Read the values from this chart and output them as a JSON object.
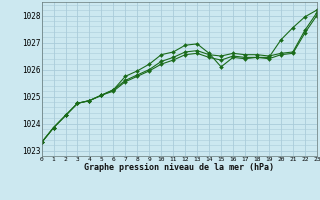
{
  "title": "Graphe pression niveau de la mer (hPa)",
  "bg_color": "#cce8f0",
  "grid_color": "#aaccda",
  "line_color": "#1a6b1a",
  "xlim": [
    0,
    23
  ],
  "ylim": [
    1022.8,
    1028.5
  ],
  "yticks": [
    1023,
    1024,
    1025,
    1026,
    1027,
    1028
  ],
  "xticks": [
    0,
    1,
    2,
    3,
    4,
    5,
    6,
    7,
    8,
    9,
    10,
    11,
    12,
    13,
    14,
    15,
    16,
    17,
    18,
    19,
    20,
    21,
    22,
    23
  ],
  "series": [
    [
      1023.3,
      1023.85,
      1024.3,
      1024.75,
      1024.85,
      1025.05,
      1025.25,
      1025.75,
      1025.95,
      1026.2,
      1026.55,
      1026.65,
      1026.9,
      1026.95,
      1026.6,
      1026.1,
      1026.45,
      1026.4,
      1026.45,
      1026.45,
      1027.1,
      1027.55,
      1027.95,
      1028.2
    ],
    [
      1023.3,
      1023.85,
      1024.3,
      1024.75,
      1024.85,
      1025.05,
      1025.25,
      1025.6,
      1025.8,
      1026.0,
      1026.3,
      1026.45,
      1026.65,
      1026.7,
      1026.55,
      1026.5,
      1026.6,
      1026.55,
      1026.55,
      1026.5,
      1026.6,
      1026.65,
      1027.45,
      1028.1
    ],
    [
      1023.3,
      1023.85,
      1024.3,
      1024.75,
      1024.85,
      1025.05,
      1025.2,
      1025.55,
      1025.75,
      1025.95,
      1026.2,
      1026.35,
      1026.55,
      1026.6,
      1026.45,
      1026.35,
      1026.5,
      1026.45,
      1026.45,
      1026.4,
      1026.55,
      1026.6,
      1027.35,
      1028.0
    ]
  ]
}
